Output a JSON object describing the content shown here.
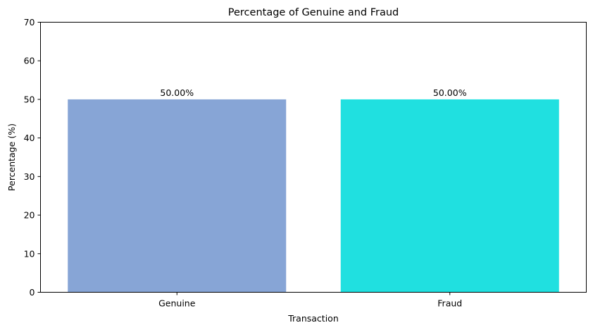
{
  "chart_data": {
    "type": "bar",
    "title": "Percentage of Genuine and Fraud",
    "xlabel": "Transaction",
    "ylabel": "Percentage (%)",
    "categories": [
      "Genuine",
      "Fraud"
    ],
    "values": [
      50.0,
      50.0
    ],
    "data_labels": [
      "50.00%",
      "50.00%"
    ],
    "bar_colors": [
      "#87a5d6",
      "#20e0e0"
    ],
    "ylim": [
      0,
      70
    ],
    "yticks": [
      0,
      10,
      20,
      30,
      40,
      50,
      60,
      70
    ],
    "grid": false,
    "legend": "none"
  }
}
